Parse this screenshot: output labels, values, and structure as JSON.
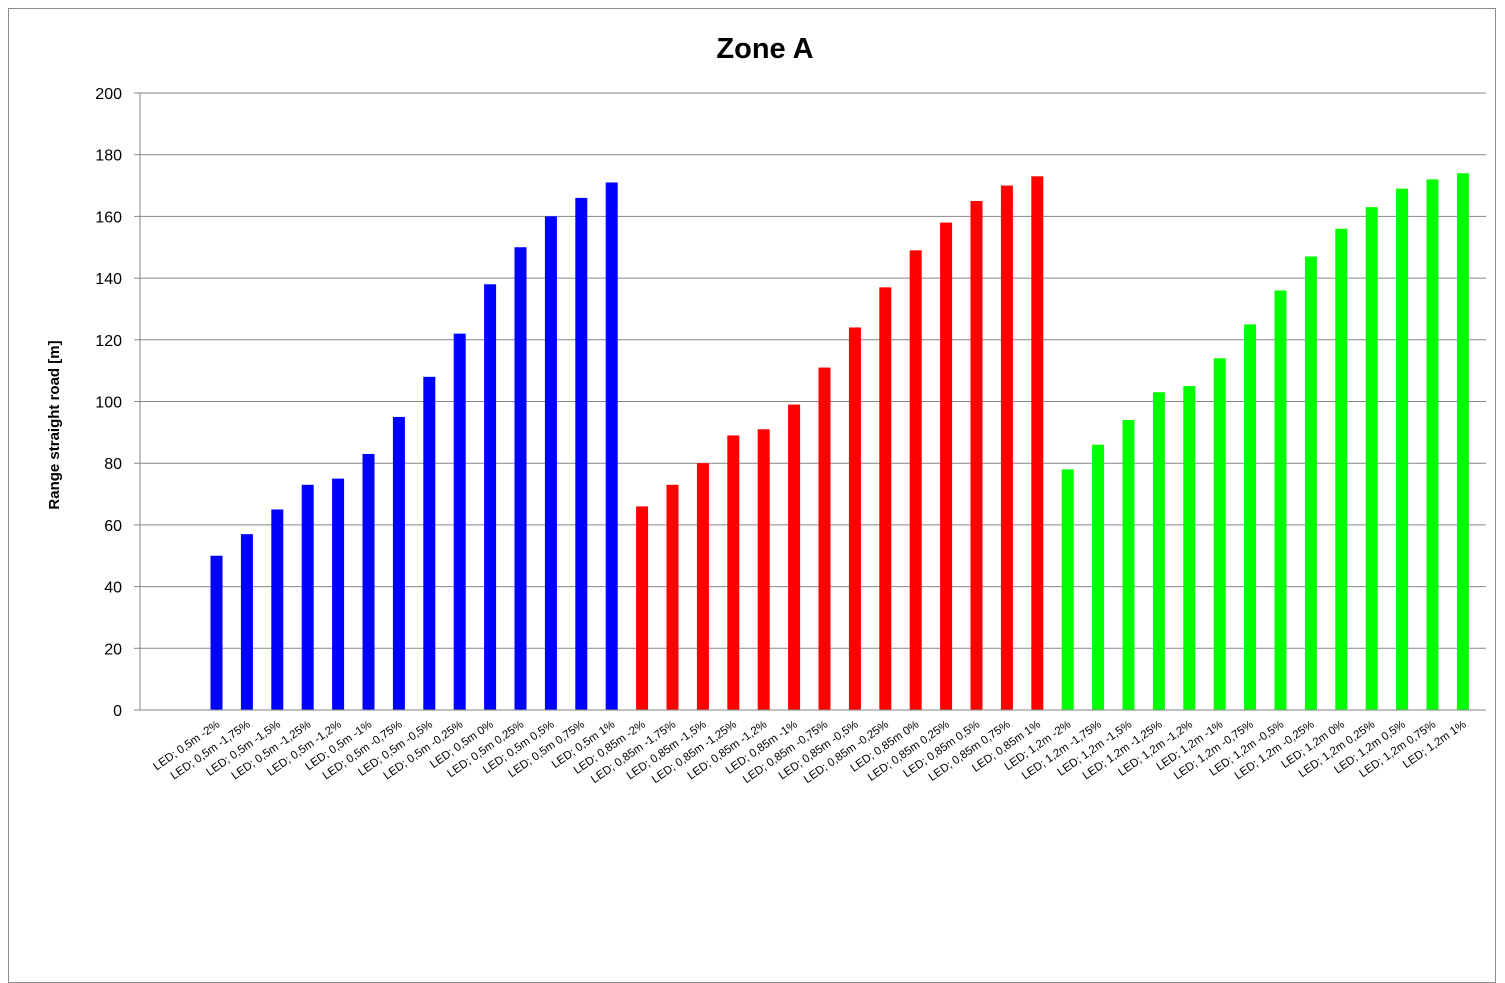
{
  "chart_data": {
    "type": "bar",
    "title": "Zone A",
    "xlabel": "",
    "ylabel": "Range straight road [m]",
    "ylim": [
      0,
      200
    ],
    "yticks": [
      0,
      20,
      40,
      60,
      80,
      100,
      120,
      140,
      160,
      180,
      200
    ],
    "grid": true,
    "legend": "none",
    "colors": {
      "0.5m": "#0000ff",
      "0.85m": "#ff0000",
      "1.2m": "#00ff00"
    },
    "categories": [
      "LED; 0,5m -2%",
      "LED; 0,5m -1,75%",
      "LED; 0,5m -1,5%",
      "LED; 0,5m -1,25%",
      "LED; 0,5m -1,2%",
      "LED; 0,5m -1%",
      "LED; 0,5m -0,75%",
      "LED; 0,5m -0,5%",
      "LED; 0,5m -0,25%",
      "LED; 0,5m 0%",
      "LED; 0,5m 0,25%",
      "LED; 0,5m 0,5%",
      "LED; 0,5m 0,75%",
      "LED; 0,5m 1%",
      "LED; 0,85m -2%",
      "LED; 0,85m -1,75%",
      "LED; 0,85m -1,5%",
      "LED; 0,85m -1,25%",
      "LED; 0,85m -1,2%",
      "LED; 0,85m -1%",
      "LED; 0,85m -0,75%",
      "LED; 0,85m -0,5%",
      "LED; 0,85m -0,25%",
      "LED; 0,85m 0%",
      "LED; 0,85m 0,25%",
      "LED; 0,85m 0,5%",
      "LED; 0,85m 0,75%",
      "LED; 0,85m 1%",
      "LED; 1,2m -2%",
      "LED; 1,2m -1,75%",
      "LED; 1,2m -1,5%",
      "LED; 1,2m -1,25%",
      "LED; 1,2m -1,2%",
      "LED; 1,2m -1%",
      "LED; 1,2m -0,75%",
      "LED; 1,2m -0,5%",
      "LED; 1,2m -0,25%",
      "LED; 1,2m 0%",
      "LED; 1,2m 0,25%",
      "LED; 1,2m 0,5%",
      "LED; 1,2m 0,75%",
      "LED; 1,2m 1%"
    ],
    "values": [
      50,
      57,
      65,
      73,
      75,
      83,
      95,
      108,
      122,
      138,
      150,
      160,
      166,
      171,
      66,
      73,
      80,
      89,
      91,
      99,
      111,
      124,
      137,
      149,
      158,
      165,
      170,
      173,
      78,
      86,
      94,
      103,
      105,
      114,
      125,
      136,
      147,
      156,
      163,
      169,
      172,
      174
    ],
    "bar_groups": [
      "0.5m",
      "0.5m",
      "0.5m",
      "0.5m",
      "0.5m",
      "0.5m",
      "0.5m",
      "0.5m",
      "0.5m",
      "0.5m",
      "0.5m",
      "0.5m",
      "0.5m",
      "0.5m",
      "0.85m",
      "0.85m",
      "0.85m",
      "0.85m",
      "0.85m",
      "0.85m",
      "0.85m",
      "0.85m",
      "0.85m",
      "0.85m",
      "0.85m",
      "0.85m",
      "0.85m",
      "0.85m",
      "1.2m",
      "1.2m",
      "1.2m",
      "1.2m",
      "1.2m",
      "1.2m",
      "1.2m",
      "1.2m",
      "1.2m",
      "1.2m",
      "1.2m",
      "1.2m",
      "1.2m",
      "1.2m"
    ]
  }
}
